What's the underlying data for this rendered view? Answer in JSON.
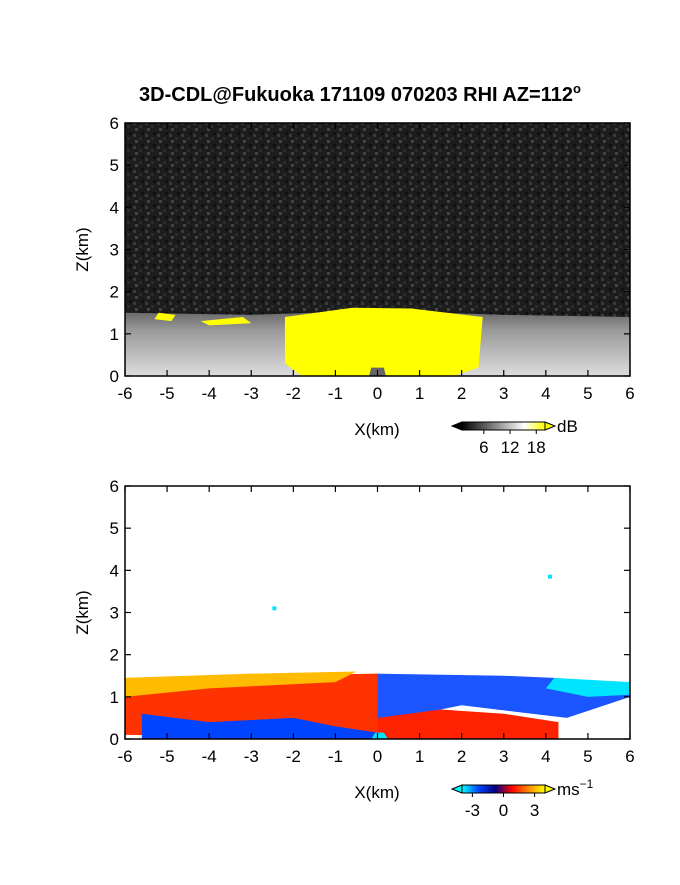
{
  "chart_data": [
    {
      "type": "heatmap",
      "title": "3D-CDL@Fukuoka 171109 070203 RHI AZ=112",
      "title_sup": "o",
      "xlabel": "X(km)",
      "ylabel": "Z(km)",
      "xlim": [
        -6,
        6
      ],
      "ylim": [
        0,
        6
      ],
      "xticks": [
        -6,
        -5,
        -4,
        -3,
        -2,
        -1,
        0,
        1,
        2,
        3,
        4,
        5,
        6
      ],
      "yticks": [
        0,
        1,
        2,
        3,
        4,
        5,
        6
      ],
      "colorbar": {
        "label": "dB",
        "lim": [
          1,
          20
        ],
        "ticks": [
          6,
          12,
          18
        ],
        "colors": [
          "#000000",
          "#555555",
          "#aaaaaa",
          "#ffffff",
          "#ffff00"
        ]
      }
    },
    {
      "type": "heatmap",
      "xlabel": "X(km)",
      "ylabel": "Z(km)",
      "xlim": [
        -6,
        6
      ],
      "ylim": [
        0,
        6
      ],
      "xticks": [
        -6,
        -5,
        -4,
        -3,
        -2,
        -1,
        0,
        1,
        2,
        3,
        4,
        5,
        6
      ],
      "yticks": [
        0,
        1,
        2,
        3,
        4,
        5,
        6
      ],
      "colorbar": {
        "label": "ms",
        "label_sup": "−1",
        "lim": [
          -4,
          4
        ],
        "ticks": [
          -3,
          0,
          3
        ],
        "colors": [
          "#00ffff",
          "#0044ff",
          "#000080",
          "#ff0000",
          "#ff8800",
          "#ffff00"
        ]
      }
    }
  ]
}
